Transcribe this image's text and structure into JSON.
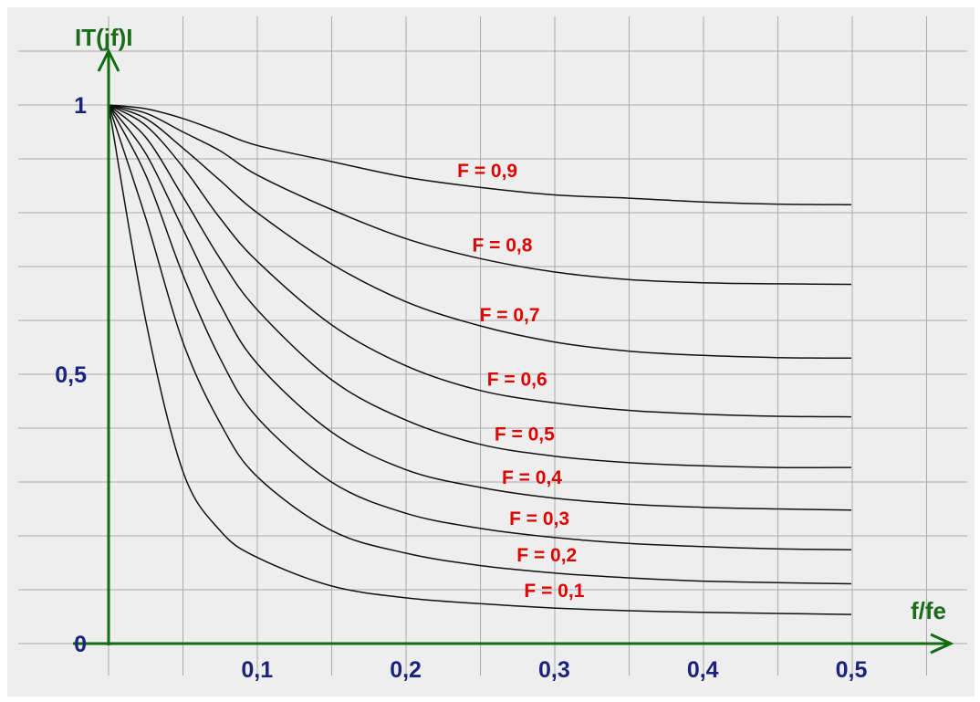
{
  "chart_data": {
    "type": "line",
    "xlabel": "f/fe",
    "ylabel": "IT(jf)I",
    "xlim": [
      0,
      0.55
    ],
    "ylim": [
      0,
      1.05
    ],
    "grid": true,
    "x_ticks": [
      {
        "value": 0.1,
        "label": "0,1"
      },
      {
        "value": 0.2,
        "label": "0,2"
      },
      {
        "value": 0.3,
        "label": "0,3"
      },
      {
        "value": 0.4,
        "label": "0,4"
      },
      {
        "value": 0.5,
        "label": "0,5"
      }
    ],
    "y_ticks": [
      {
        "value": 0,
        "label": "0"
      },
      {
        "value": 0.5,
        "label": "0,5"
      },
      {
        "value": 1,
        "label": "1"
      }
    ],
    "x": [
      0,
      0.025,
      0.05,
      0.075,
      0.1,
      0.15,
      0.2,
      0.25,
      0.3,
      0.35,
      0.4,
      0.45,
      0.5
    ],
    "series": [
      {
        "name": "F = 0,9",
        "F": 0.9,
        "values": [
          1.0,
          0.993,
          0.975,
          0.95,
          0.925,
          0.895,
          0.866,
          0.847,
          0.833,
          0.827,
          0.82,
          0.816,
          0.815
        ]
      },
      {
        "name": "F = 0,8",
        "F": 0.8,
        "values": [
          1.0,
          0.985,
          0.95,
          0.915,
          0.87,
          0.806,
          0.752,
          0.715,
          0.69,
          0.676,
          0.67,
          0.668,
          0.667
        ]
      },
      {
        "name": "F = 0,7",
        "F": 0.7,
        "values": [
          1.0,
          0.975,
          0.92,
          0.86,
          0.8,
          0.705,
          0.635,
          0.59,
          0.56,
          0.543,
          0.535,
          0.531,
          0.53
        ]
      },
      {
        "name": "F = 0,6",
        "F": 0.6,
        "values": [
          1.0,
          0.962,
          0.885,
          0.79,
          0.71,
          0.592,
          0.516,
          0.47,
          0.447,
          0.433,
          0.426,
          0.422,
          0.421
        ]
      },
      {
        "name": "F = 0,5",
        "F": 0.5,
        "values": [
          1.0,
          0.94,
          0.83,
          0.715,
          0.62,
          0.49,
          0.415,
          0.37,
          0.348,
          0.336,
          0.33,
          0.327,
          0.327
        ]
      },
      {
        "name": "F = 0,4",
        "F": 0.4,
        "values": [
          1.0,
          0.91,
          0.77,
          0.63,
          0.52,
          0.393,
          0.323,
          0.29,
          0.27,
          0.259,
          0.253,
          0.25,
          0.248
        ]
      },
      {
        "name": "F = 0,3",
        "F": 0.3,
        "values": [
          1.0,
          0.87,
          0.685,
          0.53,
          0.42,
          0.3,
          0.242,
          0.214,
          0.197,
          0.186,
          0.18,
          0.176,
          0.174
        ]
      },
      {
        "name": "F = 0,2",
        "F": 0.2,
        "values": [
          1.0,
          0.79,
          0.56,
          0.41,
          0.31,
          0.21,
          0.168,
          0.145,
          0.131,
          0.122,
          0.116,
          0.113,
          0.111
        ]
      },
      {
        "name": "F = 0,1",
        "F": 0.1,
        "values": [
          1.0,
          0.6,
          0.32,
          0.21,
          0.16,
          0.107,
          0.085,
          0.074,
          0.066,
          0.061,
          0.058,
          0.056,
          0.054
        ]
      }
    ]
  },
  "colors": {
    "axis": "#0f6e0f",
    "axis_label": "#1a6b1a",
    "tick_label": "#1a237e",
    "curve": "#111111",
    "series_label": "#e00000",
    "grid": "#a9a9a9",
    "background": "#eeeeee"
  }
}
